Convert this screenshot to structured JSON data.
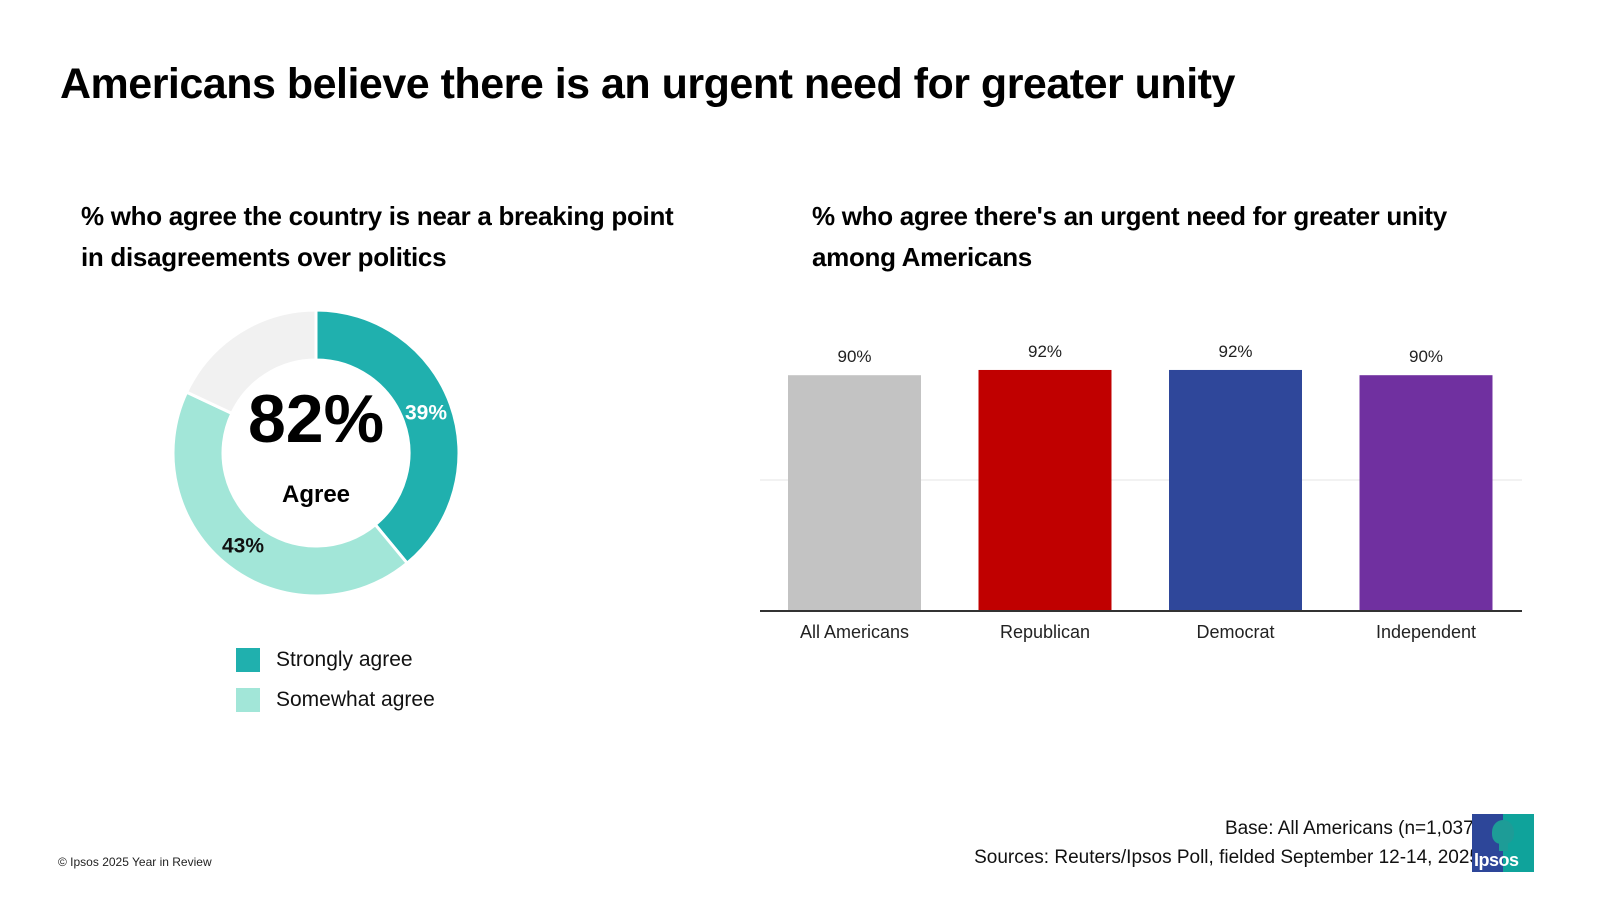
{
  "page": {
    "title": "Americans believe there is an urgent need for greater unity",
    "footer": {
      "base": "Base: All Americans (n=1,037)",
      "sources": "Sources: Reuters/Ipsos Poll, fielded September 12-14, 2025",
      "copyright": "© Ipsos 2025 Year in Review",
      "logo_text": "Ipsos"
    },
    "colors": {
      "strongly_agree": "#20B0AE",
      "somewhat_agree": "#A2E6D8",
      "remainder": "#F1F1F1"
    }
  },
  "chart_data": [
    {
      "type": "pie",
      "variant": "donut",
      "title": "% who agree the country is near a breaking point in disagreements over politics",
      "center_value": "82%",
      "center_label": "Agree",
      "slices": [
        {
          "name": "Strongly agree",
          "value": 39,
          "label": "39%",
          "color": "#20B0AE"
        },
        {
          "name": "Somewhat agree",
          "value": 43,
          "label": "43%",
          "color": "#A2E6D8"
        },
        {
          "name": "Other",
          "value": 18,
          "label": "",
          "color": "#F1F1F1"
        }
      ],
      "legend": [
        {
          "label": "Strongly agree",
          "color": "#20B0AE"
        },
        {
          "label": "Somewhat agree",
          "color": "#A2E6D8"
        }
      ],
      "legend_position": "bottom"
    },
    {
      "type": "bar",
      "title": "% who agree there's an urgent need for greater unity among Americans",
      "categories": [
        "All Americans",
        "Republican",
        "Democrat",
        "Independent"
      ],
      "values": [
        90,
        92,
        92,
        90
      ],
      "labels": [
        "90%",
        "92%",
        "92%",
        "90%"
      ],
      "colors": [
        "#C3C3C3",
        "#C00000",
        "#2F479A",
        "#7030A0"
      ],
      "xlabel": "",
      "ylabel": "",
      "ylim": [
        0,
        100
      ],
      "gridlines": [
        50
      ],
      "grid": true
    }
  ]
}
